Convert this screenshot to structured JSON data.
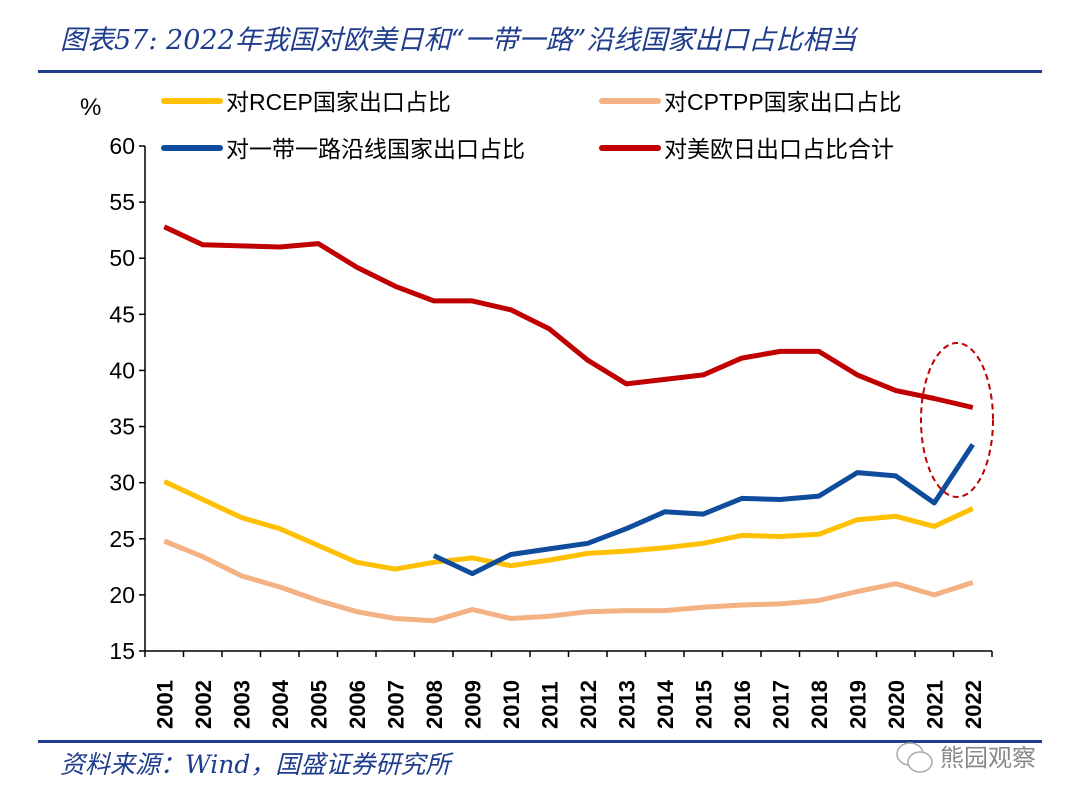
{
  "title": "图表57: 2022年我国对欧美日和“一带一路”沿线国家出口占比相当",
  "source": "资料来源：Wind，国盛证券研究所",
  "watermark": "熊园观察",
  "chart_data": {
    "type": "line",
    "ylabel": "%",
    "ylim": [
      15,
      60
    ],
    "yticks": [
      15,
      20,
      25,
      30,
      35,
      40,
      45,
      50,
      55,
      60
    ],
    "grid": false,
    "legend_position": "top",
    "categories": [
      "2001",
      "2002",
      "2003",
      "2004",
      "2005",
      "2006",
      "2007",
      "2008",
      "2009",
      "2010",
      "2011",
      "2012",
      "2013",
      "2014",
      "2015",
      "2016",
      "2017",
      "2018",
      "2019",
      "2020",
      "2021",
      "2022"
    ],
    "series": [
      {
        "name": "对RCEP国家出口占比",
        "color": "#ffc000",
        "values": [
          30.1,
          28.5,
          26.9,
          25.9,
          24.4,
          22.9,
          22.3,
          22.9,
          23.3,
          22.6,
          23.1,
          23.7,
          23.9,
          24.2,
          24.6,
          25.3,
          25.2,
          25.4,
          26.7,
          27.0,
          26.1,
          27.7
        ]
      },
      {
        "name": "对CPTPP国家出口占比",
        "color": "#f4b183",
        "values": [
          24.8,
          23.4,
          21.7,
          20.7,
          19.5,
          18.5,
          17.9,
          17.7,
          18.7,
          17.9,
          18.1,
          18.5,
          18.6,
          18.6,
          18.9,
          19.1,
          19.2,
          19.5,
          20.3,
          21.0,
          20.0,
          21.1
        ]
      },
      {
        "name": "对一带一路沿线国家出口占比",
        "color": "#0f4c9c",
        "values": [
          null,
          null,
          null,
          null,
          null,
          null,
          null,
          23.5,
          21.9,
          23.6,
          24.1,
          24.6,
          25.9,
          27.4,
          27.2,
          28.6,
          28.5,
          28.8,
          30.9,
          30.6,
          28.2,
          33.4
        ]
      },
      {
        "name": "对美欧日出口占比合计",
        "color": "#c00000",
        "values": [
          52.8,
          51.2,
          51.1,
          51.0,
          51.3,
          49.2,
          47.5,
          46.2,
          46.2,
          45.4,
          43.7,
          40.9,
          38.8,
          39.2,
          39.6,
          41.1,
          41.7,
          41.7,
          39.6,
          38.2,
          37.5,
          36.7
        ]
      }
    ],
    "annotations": [
      {
        "type": "dashed-ellipse",
        "color": "#c00000",
        "around": "2021-2022"
      }
    ]
  }
}
